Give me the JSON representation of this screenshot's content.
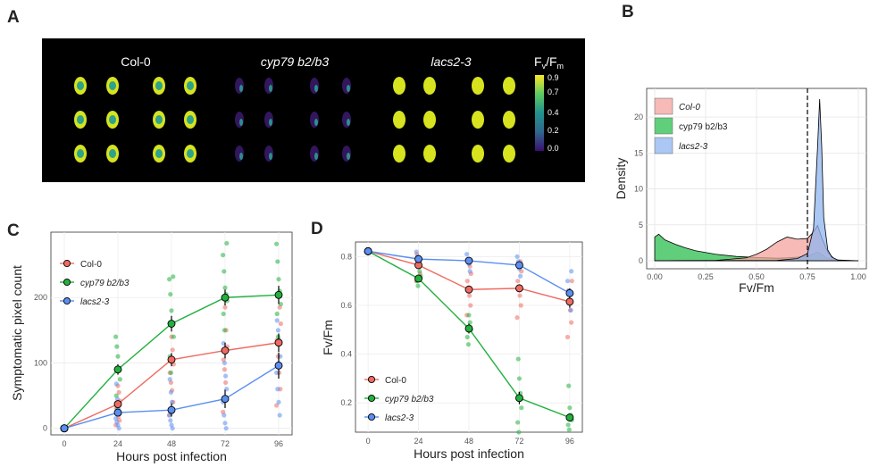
{
  "panels": {
    "a": "A",
    "b": "B",
    "c": "C",
    "d": "D"
  },
  "panel_a": {
    "groups": [
      "Col-0",
      "cyp79 b2/b3",
      "lacs2-3"
    ],
    "colorbar": {
      "title_main": "F",
      "title_sub1": "v",
      "title_slash": "/F",
      "title_sub2": "m",
      "ticks": [
        "0.9",
        "0.7",
        "0.4",
        "0.2",
        "0.0"
      ]
    }
  },
  "chart_data": [
    {
      "panel": "B",
      "type": "area",
      "xlabel": "Fv/Fm",
      "ylabel": "Density",
      "xlim": [
        0,
        1
      ],
      "ylim": [
        0,
        23.5
      ],
      "xticks": [
        "0.00",
        "0.25",
        "0.50",
        "0.75",
        "1.00"
      ],
      "yticks": [
        "0",
        "5",
        "10",
        "15",
        "20"
      ],
      "vline": 0.75,
      "legend_position": "top-left",
      "series": [
        {
          "name": "cyp79 b2/b3",
          "color": "#2bbd4f",
          "x": [
            0.0,
            0.02,
            0.05,
            0.1,
            0.15,
            0.2,
            0.3,
            0.4,
            0.5,
            0.6,
            0.65,
            0.7,
            0.75,
            0.8,
            0.85,
            0.9,
            1.0
          ],
          "y": [
            3.3,
            3.7,
            2.9,
            2.3,
            1.8,
            1.4,
            0.9,
            0.6,
            0.45,
            0.35,
            0.4,
            0.5,
            0.6,
            1.2,
            0.3,
            0.05,
            0.0
          ]
        },
        {
          "name": "Col-0",
          "color": "#f4a39e",
          "x": [
            0.0,
            0.3,
            0.45,
            0.5,
            0.55,
            0.6,
            0.65,
            0.7,
            0.75,
            0.78,
            0.8,
            0.82,
            0.85,
            0.88,
            0.9,
            1.0
          ],
          "y": [
            0.0,
            0.05,
            0.4,
            0.9,
            1.6,
            2.6,
            3.3,
            3.0,
            3.1,
            4.0,
            4.9,
            3.2,
            1.2,
            0.3,
            0.05,
            0.0
          ]
        },
        {
          "name": "lacs2-3",
          "color": "#8fb4ef",
          "x": [
            0.0,
            0.6,
            0.7,
            0.75,
            0.78,
            0.8,
            0.81,
            0.82,
            0.83,
            0.85,
            0.87,
            0.9,
            1.0
          ],
          "y": [
            0.0,
            0.05,
            0.3,
            1.0,
            4.5,
            16.0,
            22.5,
            16.0,
            6.0,
            1.5,
            0.5,
            0.1,
            0.0
          ]
        }
      ]
    },
    {
      "panel": "C",
      "type": "line",
      "xlabel": "Hours post infection",
      "ylabel": "Symptomatic pixel count",
      "x": [
        0,
        24,
        48,
        72,
        96
      ],
      "xlim": [
        -6,
        102
      ],
      "ylim": [
        -10,
        300
      ],
      "yticks": [
        0,
        100,
        200
      ],
      "legend_position": "top-left",
      "series": [
        {
          "name": "Col-0",
          "color": "#ef6b62",
          "values": [
            0,
            37,
            105,
            119,
            131
          ],
          "err": [
            0,
            5,
            10,
            12,
            14
          ],
          "points": [
            [
              24,
              5,
              12,
              18,
              25,
              30,
              42,
              55,
              65
            ],
            [
              48,
              20,
              40,
              58,
              70,
              85,
              98,
              120,
              140
            ],
            [
              72,
              25,
              45,
              70,
              90,
              105,
              125,
              150,
              185
            ],
            [
              96,
              35,
              60,
              85,
              110,
              135,
              160,
              185,
              205
            ]
          ]
        },
        {
          "name": "cyp79 b2/b3",
          "color": "#22b03e",
          "values": [
            0,
            90,
            160,
            200,
            204
          ],
          "err": [
            0,
            8,
            12,
            12,
            14
          ],
          "points": [
            [
              24,
              30,
              50,
              75,
              92,
              110,
              125,
              140
            ],
            [
              48,
              85,
              110,
              140,
              160,
              180,
              205,
              228,
              232
            ],
            [
              72,
              150,
              175,
              195,
              205,
              215,
              240,
              265,
              283
            ],
            [
              96,
              140,
              175,
              190,
              210,
              228,
              255,
              282
            ]
          ]
        },
        {
          "name": "lacs2-3",
          "color": "#5b8ff0",
          "values": [
            0,
            24,
            28,
            45,
            96
          ],
          "err": [
            0,
            5,
            10,
            14,
            20
          ],
          "points": [
            [
              24,
              0,
              5,
              10,
              15,
              22,
              30,
              45,
              68
            ],
            [
              48,
              0,
              5,
              12,
              20,
              28,
              40,
              55,
              75
            ],
            [
              72,
              0,
              8,
              20,
              40,
              60,
              80,
              100,
              130
            ],
            [
              96,
              20,
              40,
              60,
              85,
              110,
              135,
              150,
              165
            ]
          ]
        }
      ]
    },
    {
      "panel": "D",
      "type": "line",
      "xlabel": "Hours post infection",
      "ylabel": "Fv/Fm",
      "x": [
        0,
        24,
        48,
        72,
        96
      ],
      "xlim": [
        -6,
        102
      ],
      "ylim": [
        0.08,
        0.86
      ],
      "yticks": [
        0.2,
        0.4,
        0.6,
        0.8
      ],
      "legend_position": "bottom-left",
      "series": [
        {
          "name": "Col-0",
          "color": "#ef6b62",
          "values": [
            0.822,
            0.765,
            0.665,
            0.67,
            0.615
          ],
          "err": [
            0.005,
            0.01,
            0.012,
            0.015,
            0.025
          ],
          "points": [
            [
              24,
              0.7,
              0.73,
              0.76,
              0.79,
              0.81
            ],
            [
              48,
              0.56,
              0.6,
              0.64,
              0.67,
              0.7,
              0.73,
              0.76
            ],
            [
              72,
              0.55,
              0.6,
              0.64,
              0.67,
              0.7,
              0.74,
              0.78
            ],
            [
              96,
              0.47,
              0.53,
              0.58,
              0.62,
              0.66,
              0.7
            ]
          ]
        },
        {
          "name": "cyp79 b2/b3",
          "color": "#22b03e",
          "values": [
            0.822,
            0.71,
            0.505,
            0.22,
            0.14
          ],
          "err": [
            0.005,
            0.012,
            0.02,
            0.025,
            0.015
          ],
          "points": [
            [
              24,
              0.68,
              0.7,
              0.72,
              0.74
            ],
            [
              48,
              0.44,
              0.47,
              0.5,
              0.53,
              0.56
            ],
            [
              72,
              0.08,
              0.12,
              0.18,
              0.24,
              0.3,
              0.38
            ],
            [
              96,
              0.09,
              0.11,
              0.13,
              0.15,
              0.18,
              0.27
            ]
          ]
        },
        {
          "name": "lacs2-3",
          "color": "#5b8ff0",
          "values": [
            0.822,
            0.79,
            0.783,
            0.765,
            0.65
          ],
          "err": [
            0.005,
            0.008,
            0.01,
            0.012,
            0.02
          ],
          "points": [
            [
              24,
              0.76,
              0.78,
              0.8,
              0.82
            ],
            [
              48,
              0.74,
              0.77,
              0.79,
              0.81
            ],
            [
              72,
              0.72,
              0.75,
              0.78,
              0.8
            ],
            [
              96,
              0.58,
              0.62,
              0.66,
              0.7,
              0.74
            ]
          ]
        }
      ]
    }
  ]
}
